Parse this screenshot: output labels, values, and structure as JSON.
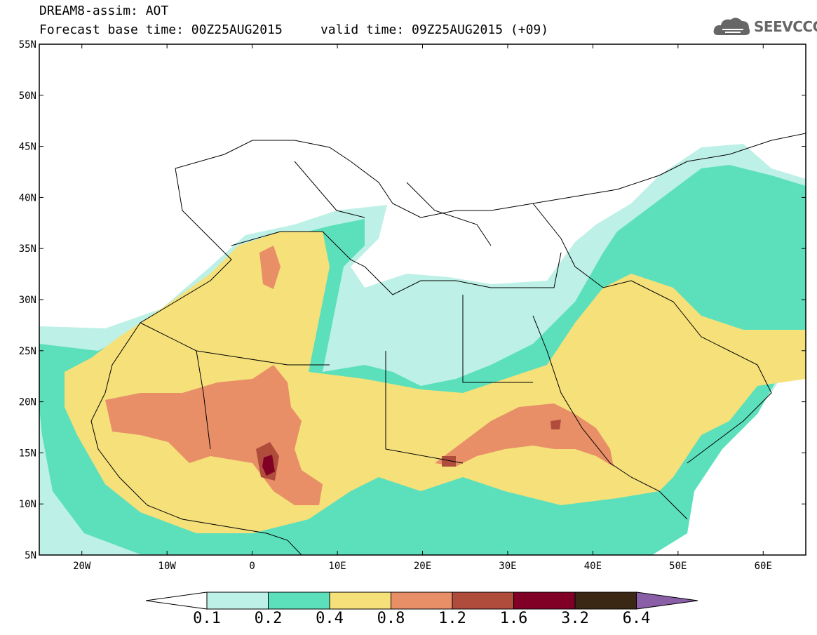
{
  "header": {
    "title": "DREAM8-assim: AOT",
    "forecast_base": "Forecast base time: 00Z25AUG2015",
    "valid_time": "valid time: 09Z25AUG2015 (+09)",
    "logo_text": "SEEVCCC"
  },
  "axes": {
    "lat_labels": [
      "55N",
      "50N",
      "45N",
      "40N",
      "35N",
      "30N",
      "25N",
      "20N",
      "15N",
      "10N",
      "5N"
    ],
    "lat_values": [
      55,
      50,
      45,
      40,
      35,
      30,
      25,
      20,
      15,
      10,
      5
    ],
    "lon_labels": [
      "20W",
      "10W",
      "0",
      "10E",
      "20E",
      "30E",
      "40E",
      "50E",
      "60E"
    ],
    "lon_values": [
      -20,
      -10,
      0,
      10,
      20,
      30,
      40,
      50,
      60
    ],
    "lon_range": [
      -25,
      65
    ],
    "lat_range": [
      5,
      55
    ]
  },
  "colorbar": {
    "levels": [
      "0.1",
      "0.2",
      "0.4",
      "0.8",
      "1.2",
      "1.6",
      "3.2",
      "6.4"
    ],
    "colors": [
      "#ffffff",
      "#bdf0e6",
      "#5ce0bc",
      "#f5e07a",
      "#e88f68",
      "#b04c3c",
      "#800026",
      "#3a2814",
      "#8a5fa8"
    ]
  },
  "colors": {
    "c01": "#bdf0e6",
    "c02": "#5ce0bc",
    "c04": "#f5e07a",
    "c08": "#e88f68",
    "c12": "#b04c3c",
    "c16": "#800026"
  }
}
